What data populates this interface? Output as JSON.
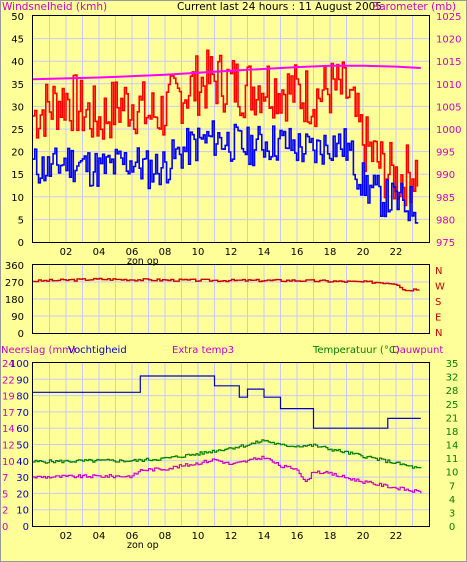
{
  "header": {
    "left_title": "Windsnelheid (kmh)",
    "center_title": "Current last 24 hours : 11 August 2005",
    "right_title": "Barometer (mb)"
  },
  "hours": [
    "02",
    "04",
    "06",
    "08",
    "10",
    "12",
    "14",
    "16",
    "18",
    "20",
    "22"
  ],
  "sunrise_label": "zon op",
  "wind_axis": [
    0,
    5,
    10,
    15,
    20,
    25,
    30,
    35,
    40,
    45,
    50
  ],
  "baro_axis": [
    975,
    980,
    985,
    990,
    995,
    1000,
    1005,
    1010,
    1015,
    1020,
    1025
  ],
  "dir_axis": [
    0,
    90,
    180,
    270,
    360
  ],
  "dir_letters": [
    "N",
    "W",
    "S",
    "E",
    "N"
  ],
  "bottom_left_labels": [
    "Neerslag (mm)",
    "Vochtigheid"
  ],
  "bottom_center_label": "Extra temp3",
  "bottom_right_labels": [
    "Temperatuur (°C)",
    "Dauwpunt"
  ],
  "rain_axis": [
    0,
    2,
    5,
    7,
    10,
    12,
    14,
    17,
    19,
    22,
    24
  ],
  "hum_axis": [
    0,
    10,
    20,
    30,
    40,
    50,
    60,
    70,
    80,
    90,
    100
  ],
  "temp_axis": [
    0,
    3,
    4,
    7,
    10,
    11,
    14,
    18,
    21,
    25,
    28,
    32,
    35
  ],
  "colors": {
    "background": "#ffff99",
    "plot_background": "#ffff99",
    "grid": "#c8c8ff",
    "wind_gust": "#ff0000",
    "wind_avg": "#0000ff",
    "barometer": "#ff00ff",
    "wind_dir": "#cc0000",
    "humidity": "#0000cc",
    "temperature": "#008000",
    "dewpoint": "#cc00cc"
  },
  "chart_data": [
    {
      "type": "line",
      "x_unit": "hour",
      "xlim": [
        0,
        24
      ],
      "ylim": [
        0,
        50
      ],
      "y2lim": [
        975,
        1025
      ],
      "series": [
        {
          "name": "Windsnelheid (kmh)",
          "axis": "left",
          "x": [
            0,
            1,
            2,
            3,
            4,
            5,
            6,
            7,
            8,
            9,
            10,
            11,
            12,
            13,
            14,
            15,
            16,
            17,
            18,
            19,
            20,
            21,
            22,
            23.3
          ],
          "values": [
            28,
            30,
            32,
            29,
            27,
            30,
            31,
            28,
            29,
            33,
            35,
            36,
            35,
            34,
            35,
            34,
            33,
            32,
            34,
            33,
            22,
            17,
            14,
            16
          ]
        },
        {
          "name": "",
          "axis": "left",
          "x": [
            0,
            1,
            2,
            3,
            4,
            5,
            6,
            7,
            8,
            9,
            10,
            11,
            12,
            13,
            14,
            15,
            16,
            17,
            18,
            19,
            20,
            21,
            22,
            23.3
          ],
          "values": [
            17,
            16,
            18,
            17,
            16,
            17,
            18,
            16,
            17,
            20,
            22,
            23,
            22,
            21,
            22,
            22,
            21,
            20,
            22,
            21,
            13,
            10,
            9,
            8
          ]
        },
        {
          "name": "Barometer (mb)",
          "axis": "right",
          "x": [
            0,
            4,
            8,
            12,
            16,
            18,
            20,
            22,
            23.5
          ],
          "values": [
            1011,
            1011.4,
            1012,
            1012.9,
            1013.7,
            1014,
            1014,
            1013.8,
            1013.5
          ]
        }
      ]
    },
    {
      "type": "line",
      "x_unit": "hour",
      "xlim": [
        0,
        24
      ],
      "ylim": [
        0,
        360
      ],
      "series": [
        {
          "name": "",
          "x": [
            0,
            4,
            8,
            12,
            16,
            20,
            21,
            22,
            22.5,
            23,
            23.4
          ],
          "values": [
            275,
            285,
            280,
            278,
            278,
            270,
            268,
            262,
            225,
            230,
            235
          ]
        }
      ]
    },
    {
      "type": "line",
      "x_unit": "hour",
      "xlim": [
        0,
        24
      ],
      "ylim": [
        0,
        100
      ],
      "y2lim": [
        0,
        35
      ],
      "series": [
        {
          "name": "Vochtigheid",
          "axis": "left",
          "x": [
            0,
            6.5,
            6.5,
            11,
            11,
            12.5,
            12.5,
            13,
            13,
            14,
            14,
            15,
            15,
            17,
            17,
            21.5,
            21.5,
            23.5
          ],
          "values": [
            82,
            82,
            92,
            92,
            86,
            86,
            79,
            79,
            84,
            84,
            79,
            79,
            72,
            72,
            60,
            60,
            66,
            66
          ]
        },
        {
          "name": "Temperatuur (°C)",
          "axis": "right",
          "x": [
            0,
            4,
            6,
            8,
            10,
            12,
            13,
            14,
            15,
            16,
            17,
            18,
            20,
            22,
            23.5
          ],
          "values": [
            13.8,
            14,
            14,
            14.5,
            15.5,
            16.8,
            17.4,
            18.4,
            17.3,
            17.2,
            17.3,
            16.5,
            15,
            13.5,
            12.2
          ]
        },
        {
          "name": "Dauwpunt",
          "axis": "right",
          "x": [
            0,
            4,
            6,
            6.5,
            8,
            10,
            11,
            12,
            13,
            14,
            15,
            16,
            16.5,
            17,
            18,
            20,
            22,
            23.5
          ],
          "values": [
            10.5,
            10.7,
            10.7,
            12,
            12.3,
            13.5,
            14.3,
            13.2,
            14,
            14.8,
            12.8,
            12.3,
            9.3,
            11.8,
            11.2,
            9.5,
            8.2,
            7.2
          ]
        }
      ]
    }
  ]
}
